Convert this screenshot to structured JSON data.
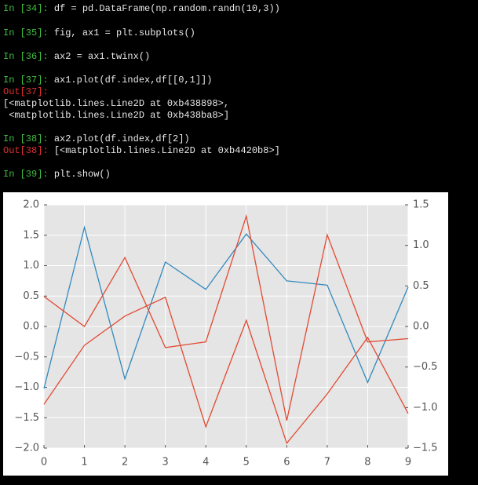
{
  "console": [
    {
      "in_prompt": "In [34]:",
      "code": "df = pd.DataFrame(np.random.randn(10,3))"
    },
    {
      "in_prompt": "In [35]:",
      "code": "fig, ax1 = plt.subplots()"
    },
    {
      "in_prompt": "In [36]:",
      "code": "ax2 = ax1.twinx()"
    },
    {
      "in_prompt": "In [37]:",
      "code": "ax1.plot(df.index,df[[0,1]])"
    },
    {
      "out_prompt": "Out[37]:"
    },
    {
      "text": "[<matplotlib.lines.Line2D at 0xb438898>,"
    },
    {
      "text": " <matplotlib.lines.Line2D at 0xb438ba8>]"
    },
    {
      "in_prompt": "In [38]:",
      "code": "ax2.plot(df.index,df[2])"
    },
    {
      "out_prompt": "Out[38]:",
      "text": "[<matplotlib.lines.Line2D at 0xb4420b8>]"
    },
    {
      "in_prompt": "In [39]:",
      "code": "plt.show()"
    }
  ],
  "chart_data": {
    "type": "line",
    "x": [
      0,
      1,
      2,
      3,
      4,
      5,
      6,
      7,
      8,
      9
    ],
    "xlim": [
      0,
      9
    ],
    "xticks": [
      0,
      1,
      2,
      3,
      4,
      5,
      6,
      7,
      8,
      9
    ],
    "ylim": [
      -2,
      2
    ],
    "yticks": [
      {
        "value": -2,
        "label": "−2.0"
      },
      {
        "value": -1.5,
        "label": "−1.5"
      },
      {
        "value": -1,
        "label": "−1.0"
      },
      {
        "value": -0.5,
        "label": "−0.5"
      },
      {
        "value": 0,
        "label": "0.0"
      },
      {
        "value": 0.5,
        "label": "0.5"
      },
      {
        "value": 1,
        "label": "1.0"
      },
      {
        "value": 1.5,
        "label": "1.5"
      },
      {
        "value": 2,
        "label": "2.0"
      }
    ],
    "y2lim": [
      -1.5,
      1.5
    ],
    "y2ticks": [
      {
        "value": -1.5,
        "label": "−1.5"
      },
      {
        "value": -1,
        "label": "−1.0"
      },
      {
        "value": -0.5,
        "label": "−0.5"
      },
      {
        "value": 0,
        "label": "0.0"
      },
      {
        "value": 0.5,
        "label": "0.5"
      },
      {
        "value": 1,
        "label": "1.0"
      },
      {
        "value": 1.5,
        "label": "1.5"
      }
    ],
    "grid": true,
    "series": [
      {
        "color": "#348ABD",
        "values": [
          -1.02,
          1.63,
          -0.86,
          1.06,
          0.61,
          1.52,
          0.75,
          0.68,
          -0.92,
          0.65
        ]
      },
      {
        "color": "#E24A33",
        "values": [
          -1.28,
          -0.31,
          0.17,
          0.48,
          -1.65,
          0.1,
          -1.92,
          -1.11,
          -0.18,
          -1.43
        ]
      },
      {
        "color": "#E24A33",
        "axis": "y2",
        "values": [
          0.37,
          0.0,
          0.85,
          -0.26,
          -0.19,
          1.36,
          -1.16,
          1.13,
          -0.19,
          -0.15
        ]
      }
    ]
  }
}
